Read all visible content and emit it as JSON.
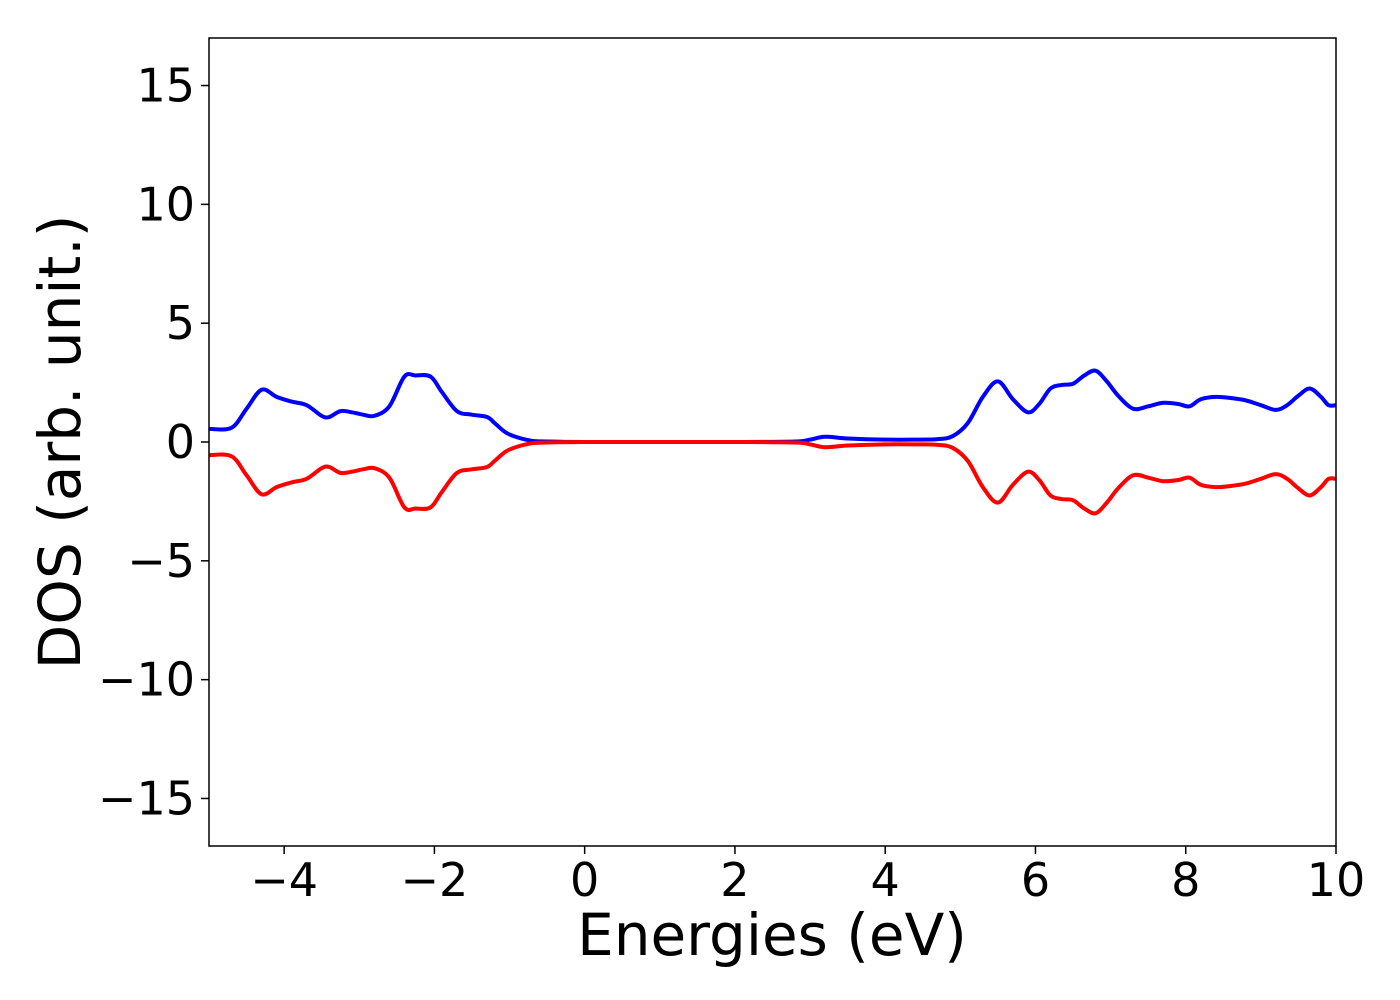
{
  "chart_data": {
    "type": "line",
    "xlabel": "Energies (eV)",
    "ylabel": "DOS (arb. unit.)",
    "xlim": [
      -5,
      10
    ],
    "ylim": [
      -17,
      17
    ],
    "x_ticks": [
      -4,
      -2,
      0,
      2,
      4,
      6,
      8,
      10
    ],
    "y_ticks": [
      -15,
      -10,
      -5,
      0,
      5,
      10,
      15
    ],
    "x_tick_labels": [
      "−4",
      "−2",
      "0",
      "2",
      "4",
      "6",
      "8",
      "10"
    ],
    "y_tick_labels": [
      "−15",
      "−10",
      "−5",
      "0",
      "5",
      "10",
      "15"
    ],
    "grid": false,
    "legend": "none",
    "series": [
      {
        "color": "#0000ff",
        "x": [
          -5.0,
          -4.7,
          -4.5,
          -4.3,
          -4.1,
          -3.9,
          -3.7,
          -3.5,
          -3.4,
          -3.25,
          -3.1,
          -2.95,
          -2.8,
          -2.6,
          -2.4,
          -2.25,
          -2.05,
          -1.9,
          -1.7,
          -1.5,
          -1.3,
          -1.2,
          -1.05,
          -0.9,
          -0.7,
          -0.5,
          0.0,
          1.0,
          2.0,
          2.8,
          3.0,
          3.2,
          3.5,
          4.0,
          4.4,
          4.7,
          4.9,
          5.1,
          5.3,
          5.5,
          5.7,
          5.9,
          6.05,
          6.2,
          6.35,
          6.5,
          6.65,
          6.8,
          6.95,
          7.1,
          7.3,
          7.5,
          7.7,
          7.9,
          8.05,
          8.2,
          8.4,
          8.6,
          8.8,
          9.0,
          9.2,
          9.35,
          9.5,
          9.65,
          9.8,
          9.9,
          10.0
        ],
        "values": [
          0.55,
          0.6,
          1.4,
          2.2,
          1.9,
          1.7,
          1.55,
          1.1,
          1.05,
          1.3,
          1.25,
          1.15,
          1.1,
          1.5,
          2.75,
          2.8,
          2.75,
          2.1,
          1.3,
          1.15,
          1.05,
          0.8,
          0.4,
          0.2,
          0.05,
          0.02,
          0.0,
          0.0,
          0.0,
          0.02,
          0.1,
          0.22,
          0.15,
          0.1,
          0.1,
          0.12,
          0.25,
          0.8,
          1.9,
          2.55,
          1.8,
          1.25,
          1.6,
          2.25,
          2.4,
          2.45,
          2.8,
          3.0,
          2.55,
          1.95,
          1.4,
          1.5,
          1.65,
          1.6,
          1.5,
          1.8,
          1.9,
          1.85,
          1.75,
          1.55,
          1.35,
          1.55,
          1.95,
          2.25,
          1.9,
          1.55,
          1.55
        ]
      },
      {
        "color": "#ff0000",
        "x": [
          -5.0,
          -4.7,
          -4.5,
          -4.3,
          -4.1,
          -3.9,
          -3.7,
          -3.5,
          -3.4,
          -3.25,
          -3.1,
          -2.95,
          -2.8,
          -2.6,
          -2.4,
          -2.25,
          -2.05,
          -1.9,
          -1.7,
          -1.5,
          -1.3,
          -1.2,
          -1.05,
          -0.9,
          -0.7,
          -0.5,
          0.0,
          1.0,
          2.0,
          2.8,
          3.0,
          3.2,
          3.5,
          4.0,
          4.4,
          4.7,
          4.9,
          5.1,
          5.3,
          5.5,
          5.7,
          5.9,
          6.05,
          6.2,
          6.35,
          6.5,
          6.65,
          6.8,
          6.95,
          7.1,
          7.3,
          7.5,
          7.7,
          7.9,
          8.05,
          8.2,
          8.4,
          8.6,
          8.8,
          9.0,
          9.2,
          9.35,
          9.5,
          9.65,
          9.8,
          9.9,
          10.0
        ],
        "values": [
          -0.55,
          -0.6,
          -1.4,
          -2.2,
          -1.9,
          -1.7,
          -1.55,
          -1.1,
          -1.05,
          -1.3,
          -1.25,
          -1.15,
          -1.1,
          -1.5,
          -2.75,
          -2.8,
          -2.75,
          -2.1,
          -1.3,
          -1.15,
          -1.05,
          -0.8,
          -0.4,
          -0.2,
          -0.05,
          -0.02,
          0.0,
          0.0,
          0.0,
          -0.02,
          -0.1,
          -0.22,
          -0.15,
          -0.1,
          -0.1,
          -0.12,
          -0.25,
          -0.8,
          -1.9,
          -2.55,
          -1.8,
          -1.25,
          -1.6,
          -2.25,
          -2.4,
          -2.45,
          -2.8,
          -3.0,
          -2.55,
          -1.95,
          -1.4,
          -1.5,
          -1.65,
          -1.6,
          -1.5,
          -1.8,
          -1.9,
          -1.85,
          -1.75,
          -1.55,
          -1.35,
          -1.55,
          -1.95,
          -2.25,
          -1.9,
          -1.55,
          -1.55
        ]
      }
    ]
  }
}
